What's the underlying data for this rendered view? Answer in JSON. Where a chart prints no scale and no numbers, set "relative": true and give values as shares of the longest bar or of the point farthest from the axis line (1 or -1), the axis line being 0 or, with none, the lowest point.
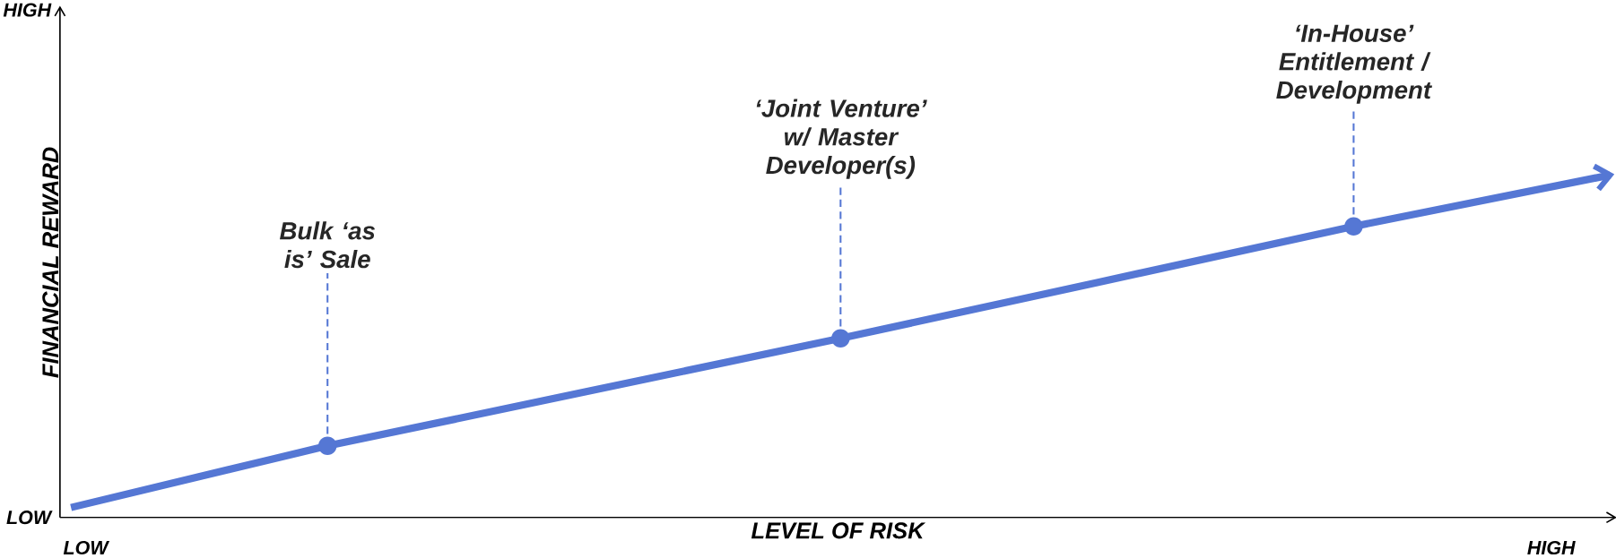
{
  "chart_data": {
    "type": "line",
    "relative": true,
    "xlabel": "LEVEL OF RISK",
    "ylabel": "FINANCIAL REWARD",
    "categories": [
      null,
      null,
      null,
      null,
      null,
      null,
      null
    ],
    "series": [
      {
        "color": "#5577d4",
        "values": [
          0.029,
          0.209,
          0.366,
          0.523,
          0.686,
          0.85,
          1
        ],
        "marker": "none"
      }
    ],
    "annotations": [
      {
        "text": "Bulk ‘as is’ Sale",
        "y": 0.209
      },
      {
        "text": "‘Joint Venture’ w/ Master Developer(s)",
        "y": 0.523
      },
      {
        "text": "‘In-House’ Entitlement / Development",
        "y": 0.85
      },
      "LOW",
      "HIGH",
      "LOW",
      "HIGH"
    ]
  }
}
